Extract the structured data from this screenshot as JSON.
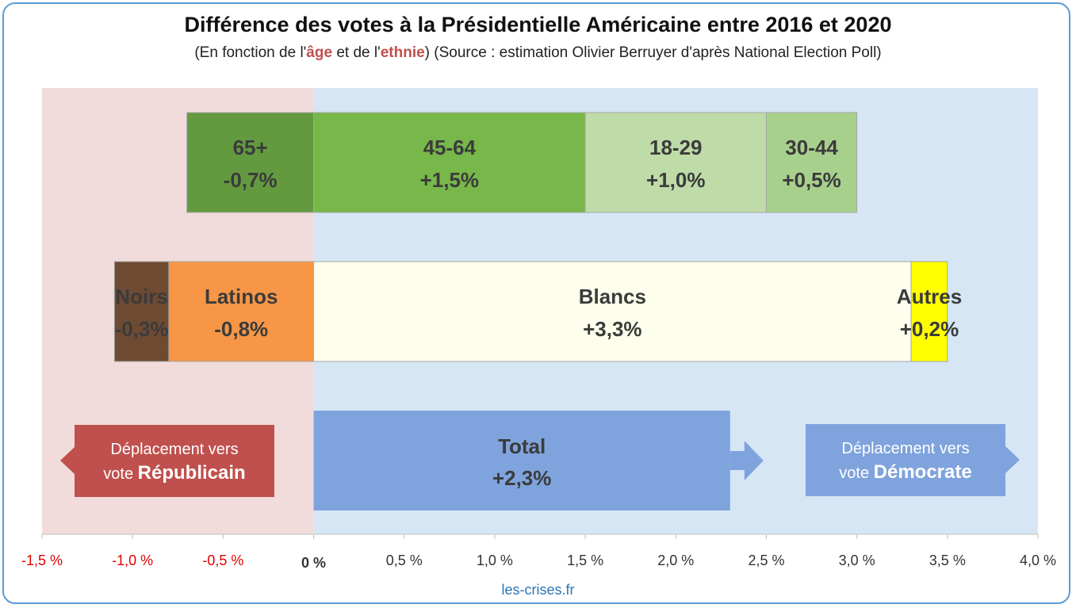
{
  "header": {
    "title": "Différence des votes à la Présidentielle Américaine entre 2016 et 2020",
    "subtitle_prefix": "(En fonction de l'",
    "subtitle_age": "âge",
    "subtitle_mid": " et de l'",
    "subtitle_ethnie": "ethnie",
    "subtitle_suffix": ") (Source : estimation Olivier Berruyer d'après National Election Poll)"
  },
  "colors": {
    "republican_zone": "#f2dcdb",
    "democrat_zone": "#d6e6f4",
    "republican_box": "#c0504d",
    "democrat_box": "#7fa3dc",
    "total_bar": "#7fa3dc",
    "negative_tick": "#e00000",
    "positive_tick": "#333333"
  },
  "chart_data": {
    "type": "bar",
    "orientation": "horizontal-stacked",
    "xlim": [
      -1.5,
      4.0
    ],
    "ticks": [
      {
        "value": -1.5,
        "label": "-1,5 %"
      },
      {
        "value": -1.0,
        "label": "-1,0 %"
      },
      {
        "value": -0.5,
        "label": "-0,5 %"
      },
      {
        "value": 0.0,
        "label": "0 %"
      },
      {
        "value": 0.5,
        "label": "0,5 %"
      },
      {
        "value": 1.0,
        "label": "1,0 %"
      },
      {
        "value": 1.5,
        "label": "1,5 %"
      },
      {
        "value": 2.0,
        "label": "2,0 %"
      },
      {
        "value": 2.5,
        "label": "2,5 %"
      },
      {
        "value": 3.0,
        "label": "3,0 %"
      },
      {
        "value": 3.5,
        "label": "3,5 %"
      },
      {
        "value": 4.0,
        "label": "4,0 %"
      }
    ],
    "rows": [
      {
        "name": "age",
        "segments": [
          {
            "label": "65+",
            "value": -0.7,
            "value_label": "-0,7%",
            "color": "#639a3f"
          },
          {
            "label": "45-64",
            "value": 1.5,
            "value_label": "+1,5%",
            "color": "#78b74a"
          },
          {
            "label": "18-29",
            "value": 1.0,
            "value_label": "+1,0%",
            "color": "#bedba8"
          },
          {
            "label": "30-44",
            "value": 0.5,
            "value_label": "+0,5%",
            "color": "#a8d08d"
          }
        ]
      },
      {
        "name": "ethnie",
        "segments": [
          {
            "label": "Latinos",
            "value": -0.8,
            "value_label": "-0,8%",
            "color": "#f79646"
          },
          {
            "label": "Noirs",
            "value": -0.3,
            "value_label": "-0,3%",
            "color": "#6e4a32"
          },
          {
            "label": "Blancs",
            "value": 3.3,
            "value_label": "+3,3%",
            "color": "#fefeec"
          },
          {
            "label": "Autres",
            "value": 0.2,
            "value_label": "+0,2%",
            "color": "#ffff00"
          }
        ]
      }
    ],
    "total": {
      "label": "Total",
      "value": 2.3,
      "value_label": "+2,3%"
    }
  },
  "annotations": {
    "republican_line1": "Déplacement vers",
    "republican_line2_prefix": "vote ",
    "republican_line2_bold": "Républicain",
    "democrat_line1": "Déplacement vers",
    "democrat_line2_prefix": "vote ",
    "democrat_line2_bold": "Démocrate"
  },
  "footer": {
    "source": "les-crises.fr"
  }
}
